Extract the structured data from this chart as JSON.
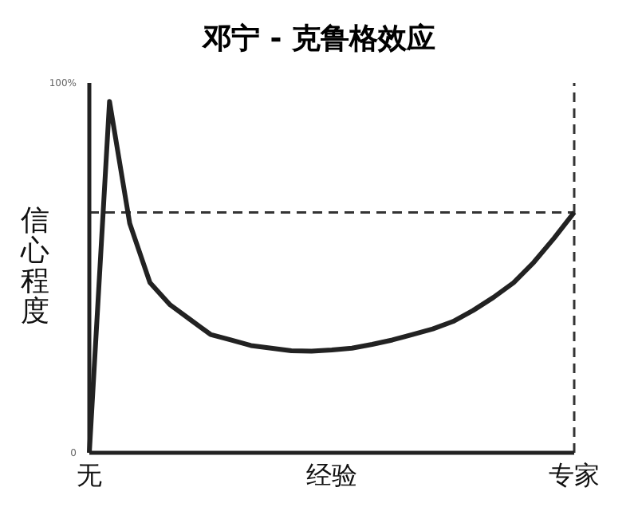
{
  "chart_data": {
    "type": "line",
    "title": "邓宁 - 克鲁格效应",
    "ylabel": "信心程度",
    "categories": [
      "无",
      null,
      null,
      null,
      null,
      null,
      null,
      null,
      null,
      null,
      null,
      null,
      "经验",
      null,
      null,
      null,
      null,
      null,
      null,
      null,
      null,
      null,
      null,
      null,
      "专家"
    ],
    "series": [
      {
        "color": "#222222",
        "values": [
          0,
          95,
          62,
          46,
          40,
          36,
          32,
          30.5,
          29,
          28.3,
          27.6,
          27.5,
          27.8,
          28.3,
          29.3,
          30.5,
          32,
          33.5,
          35.5,
          38.5,
          42,
          46,
          51.5,
          58,
          65
        ]
      }
    ],
    "ylim": [
      0,
      100
    ],
    "yticks": [
      0,
      {
        "value": 100,
        "label": "100%"
      }
    ],
    "ref_lines": [
      {
        "axis": "y",
        "value": 65,
        "line_style": "dashed",
        "color": "#333333"
      },
      {
        "axis": "x",
        "value": "专家",
        "line_style": "dashed",
        "color": "#333333"
      }
    ],
    "grid": false,
    "legend": false,
    "marker": "none"
  }
}
